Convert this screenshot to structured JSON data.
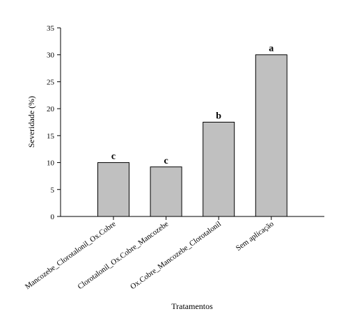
{
  "chart_data": {
    "type": "bar",
    "categories": [
      "Mancozebe_Clorotalonil_Ox.Cobre",
      "Clorotalonil_Ox.Cobre_Mancozebe",
      "Ox.Cobre_Mancozebe_Clorotalonil",
      "Sem aplicação"
    ],
    "values": [
      10,
      9.2,
      17.5,
      30
    ],
    "data_labels": [
      "c",
      "c",
      "b",
      "a"
    ],
    "xlabel": "Tratamentos",
    "ylabel": "Severidade (%)",
    "ylim": [
      0,
      35
    ],
    "yticks": [
      0,
      5,
      10,
      15,
      20,
      25,
      30,
      35
    ],
    "grid": false,
    "legend": "none",
    "bar_color": "#c0c0c0",
    "bar_edge_color": "#000000"
  }
}
